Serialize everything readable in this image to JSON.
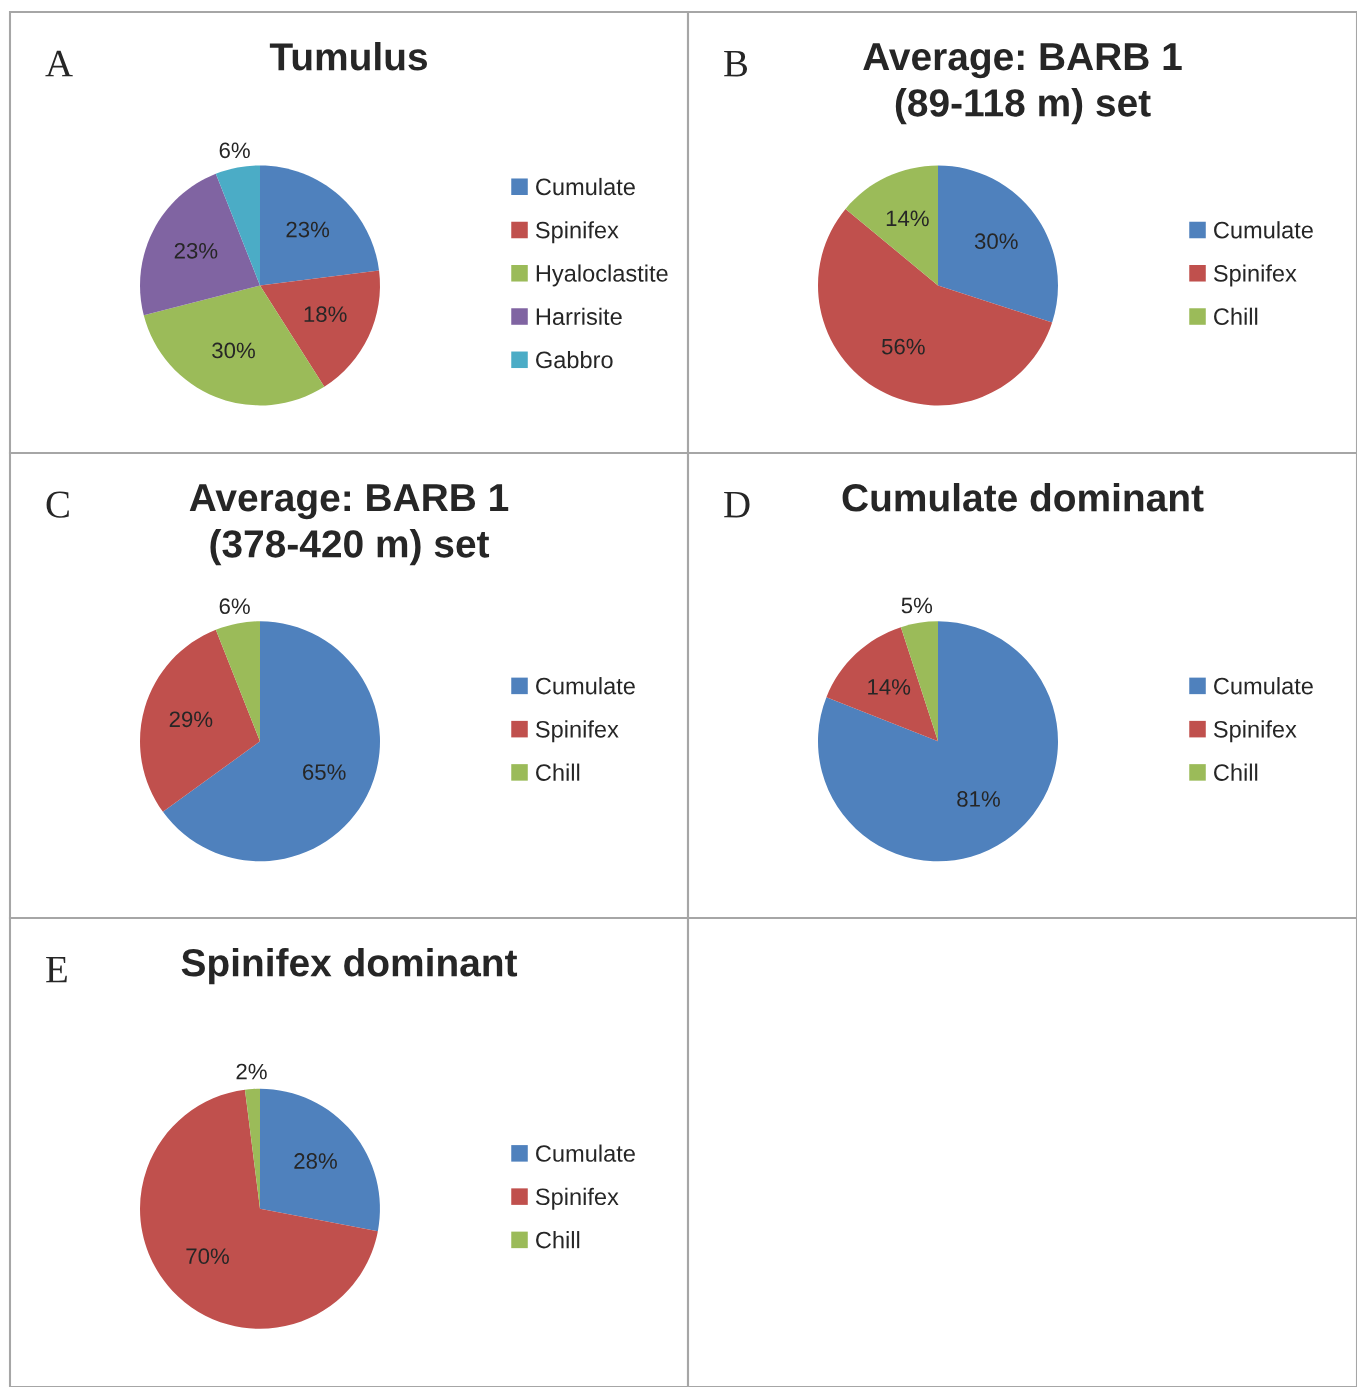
{
  "chart_data": [
    {
      "type": "pie",
      "title": "Tumulus",
      "annotations": [
        "A"
      ],
      "categories": [
        "Cumulate",
        "Spinifex",
        "Hyaloclastite",
        "Harrisite",
        "Gabbro"
      ],
      "values": [
        23,
        18,
        30,
        23,
        6
      ],
      "value_labels": [
        "23%",
        "18%",
        "30%",
        "23%",
        "6%"
      ],
      "colors": [
        "#4f81bd",
        "#c0504d",
        "#9bbb59",
        "#8064a2",
        "#4bacc6"
      ],
      "legend": "right"
    },
    {
      "type": "pie",
      "title": "Average: BARB 1\n(89-118 m) set",
      "annotations": [
        "B"
      ],
      "categories": [
        "Cumulate",
        "Spinifex",
        "Chill"
      ],
      "values": [
        30,
        56,
        14
      ],
      "value_labels": [
        "30%",
        "56%",
        "14%"
      ],
      "colors": [
        "#4f81bd",
        "#c0504d",
        "#9bbb59"
      ],
      "legend": "right"
    },
    {
      "type": "pie",
      "title": "Average: BARB 1\n(378-420 m) set",
      "annotations": [
        "C"
      ],
      "categories": [
        "Cumulate",
        "Spinifex",
        "Chill"
      ],
      "values": [
        65,
        29,
        6
      ],
      "value_labels": [
        "65%",
        "29%",
        "6%"
      ],
      "colors": [
        "#4f81bd",
        "#c0504d",
        "#9bbb59"
      ],
      "legend": "right"
    },
    {
      "type": "pie",
      "title": "Cumulate dominant",
      "annotations": [
        "D"
      ],
      "categories": [
        "Cumulate",
        "Spinifex",
        "Chill"
      ],
      "values": [
        81,
        14,
        5
      ],
      "value_labels": [
        "81%",
        "14%",
        "5%"
      ],
      "colors": [
        "#4f81bd",
        "#c0504d",
        "#9bbb59"
      ],
      "legend": "right"
    },
    {
      "type": "pie",
      "title": "Spinifex dominant",
      "annotations": [
        "E"
      ],
      "categories": [
        "Cumulate",
        "Spinifex",
        "Chill"
      ],
      "values": [
        28,
        70,
        2
      ],
      "value_labels": [
        "28%",
        "70%",
        "2%"
      ],
      "colors": [
        "#4f81bd",
        "#c0504d",
        "#9bbb59"
      ],
      "legend": "right"
    }
  ]
}
